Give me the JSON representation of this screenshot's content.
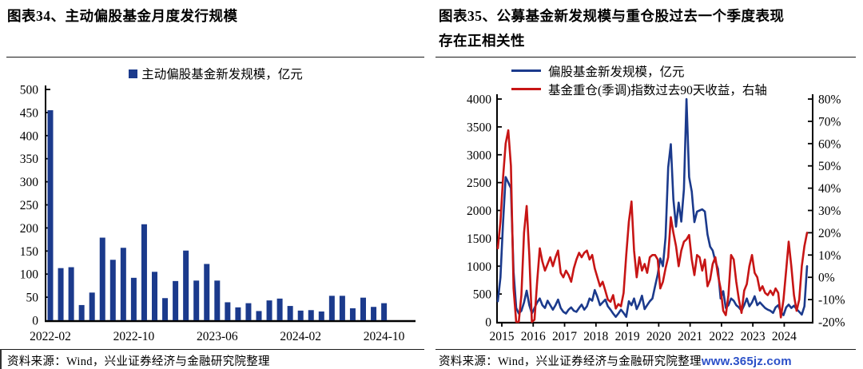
{
  "colors": {
    "navy": "#1b3a8c",
    "red": "#c71515",
    "axis": "#000000",
    "watermark_blue": "#2b50c8"
  },
  "figure34": {
    "title": "图表34、主动偏股基金月度发行规模",
    "legend": {
      "label": "主动偏股基金新发规模，亿元",
      "marker": "square",
      "color": "#1b3a8c"
    },
    "source": "资料来源：Wind，兴业证券经济与金融研究院整理"
  },
  "figure35": {
    "title_lines": {
      "0": "图表35、公募基金新发规模与重仓股过去一个季度表现",
      "1": "存在正相关性"
    },
    "legend": {
      "0": {
        "label": "偏股基金新发规模，亿元",
        "marker": "line",
        "color": "#1b3a8c"
      },
      "1": {
        "label": "基金重仓(季调)指数过去90天收益，右轴",
        "marker": "line",
        "color": "#c71515"
      }
    },
    "source": "资料来源：Wind，兴业证券经济与金融研究院整理",
    "watermark": "www.365jz.com"
  },
  "chart_data": [
    {
      "type": "bar",
      "title": "主动偏股基金月度发行规模",
      "series_name": "主动偏股基金新发规模，亿元",
      "bar_color": "#1b3a8c",
      "ylim": [
        0,
        500
      ],
      "y_ticks": [
        0,
        50,
        100,
        150,
        200,
        250,
        300,
        350,
        400,
        450,
        500
      ],
      "grid": false,
      "legend_position": "top-center",
      "categories": [
        "2022-02",
        "2022-03",
        "2022-04",
        "2022-05",
        "2022-06",
        "2022-07",
        "2022-08",
        "2022-09",
        "2022-10",
        "2022-11",
        "2022-12",
        "2023-01",
        "2023-02",
        "2023-03",
        "2023-04",
        "2023-05",
        "2023-06",
        "2023-07",
        "2023-08",
        "2023-09",
        "2023-10",
        "2023-11",
        "2023-12",
        "2024-01",
        "2024-02",
        "2024-03",
        "2024-04",
        "2024-05",
        "2024-06",
        "2024-07",
        "2024-08",
        "2024-09",
        "2024-10"
      ],
      "values": [
        455,
        113,
        115,
        33,
        60,
        179,
        131,
        157,
        92,
        208,
        105,
        48,
        85,
        151,
        86,
        122,
        86,
        39,
        28,
        37,
        20,
        43,
        47,
        31,
        21,
        22,
        19,
        53,
        53,
        26,
        49,
        29,
        37
      ],
      "x_tick_labels": [
        "2022-02",
        "2022-10",
        "2023-06",
        "2024-02",
        "2024-10"
      ],
      "x_tick_indices": [
        0,
        8,
        16,
        24,
        32
      ]
    },
    {
      "type": "line",
      "title": "公募基金新发规模与重仓股过去一个季度表现存在正相关性",
      "x_range": [
        "2015-01",
        "2024-11"
      ],
      "x_frequency": "monthly",
      "x_tick_labels": [
        "2015",
        "2016",
        "2017",
        "2018",
        "2019",
        "2020",
        "2021",
        "2022",
        "2023",
        "2024"
      ],
      "left_axis": {
        "ylim": [
          0,
          4000
        ],
        "ticks": [
          0,
          500,
          1000,
          1500,
          2000,
          2500,
          3000,
          3500,
          4000
        ]
      },
      "right_axis": {
        "ylim": [
          -20,
          80
        ],
        "ticks": [
          -20,
          -10,
          0,
          10,
          20,
          30,
          40,
          50,
          60,
          70,
          80
        ],
        "unit": "%"
      },
      "grid": false,
      "legend_position": "top-left",
      "series": [
        {
          "name": "偏股基金新发规模，亿元",
          "axis": "left",
          "color": "#1b3a8c",
          "values": [
            370,
            800,
            1800,
            2600,
            2500,
            2400,
            900,
            250,
            150,
            200,
            350,
            560,
            300,
            150,
            250,
            350,
            420,
            300,
            250,
            380,
            300,
            220,
            300,
            400,
            250,
            180,
            150,
            220,
            260,
            200,
            180,
            250,
            310,
            220,
            280,
            420,
            380,
            570,
            450,
            300,
            350,
            400,
            280,
            220,
            150,
            90,
            150,
            220,
            160,
            90,
            370,
            300,
            420,
            230,
            330,
            470,
            230,
            300,
            370,
            420,
            640,
            850,
            1140,
            1000,
            1520,
            2770,
            3190,
            2200,
            1710,
            2140,
            1800,
            2380,
            4000,
            2600,
            2340,
            1790,
            1980,
            2000,
            2020,
            1980,
            1570,
            1350,
            1280,
            1090,
            950,
            420,
            550,
            250,
            300,
            420,
            380,
            300,
            260,
            200,
            300,
            420,
            280,
            350,
            460,
            300,
            350,
            300,
            250,
            220,
            200,
            160,
            260,
            300,
            180,
            120,
            260,
            310,
            250,
            290,
            230,
            180,
            130,
            280,
            1000
          ]
        },
        {
          "name": "基金重仓(季调)指数过去90天收益，右轴",
          "axis": "right",
          "color": "#c71515",
          "values": [
            13,
            25,
            45,
            60,
            66,
            50,
            -5,
            -20,
            -20,
            -8,
            20,
            32,
            10,
            -20,
            -19,
            -2,
            13,
            7,
            3,
            6,
            9,
            5,
            9,
            12,
            2,
            0,
            3,
            1,
            -2,
            4,
            8,
            11,
            9,
            11,
            12,
            8,
            10,
            4,
            0,
            -4,
            -2,
            -6,
            -10,
            -11,
            -8,
            -14,
            -12,
            -13,
            -7,
            10,
            25,
            34,
            12,
            0,
            9,
            3,
            6,
            2,
            9,
            10,
            10,
            8,
            -5,
            -2,
            4,
            9,
            27,
            20,
            14,
            5,
            12,
            16,
            17,
            19,
            8,
            1,
            10,
            9,
            3,
            8,
            -4,
            -1,
            6,
            9,
            1,
            -5,
            -15,
            -17,
            -8,
            10,
            8,
            -2,
            -10,
            -16,
            -6,
            -3,
            5,
            10,
            2,
            0,
            -6,
            -4,
            -7,
            -8,
            -6,
            -8,
            -5,
            -7,
            -18,
            -10,
            3,
            16,
            5,
            -8,
            -15,
            -10,
            5,
            14,
            20
          ]
        }
      ]
    }
  ]
}
